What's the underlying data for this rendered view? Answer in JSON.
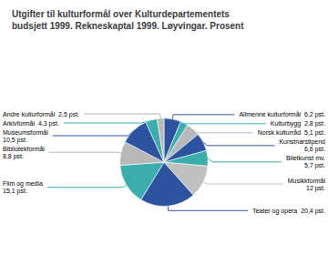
{
  "chart_data": {
    "type": "pie",
    "title": "Utgifter til kulturformål over Kulturdepartementets\nbudsjett 1999. Rekneskaptal 1999. Løyvingar. Prosent",
    "categories": [
      "Allmenne kulturformål  6,2 pst.",
      "Kulturbygg  2,8 pst.",
      "Norsk kulturråd  5,1 pst.",
      "Kunstnarstipend\n6,6 pst.",
      "Biletkunst mv.\n5,7 pst.",
      "Musikkformål\n12 pst.",
      "Teater og opera  20,4 pst.",
      "Film og media\n15,1 pst.",
      "Bibliotekformål\n8,8 pst.",
      "Museumsformål\n10,5 pst.",
      "Arkivformål  4,3 pst.",
      "Andre kulturformål  2,5 pst."
    ],
    "values": [
      6.2,
      2.8,
      5.1,
      6.6,
      5.7,
      12.0,
      20.4,
      15.1,
      8.8,
      10.5,
      4.3,
      2.5
    ],
    "colors": [
      "#2d52a0",
      "#3aadad",
      "#b8b8b8",
      "#2d52a0",
      "#3aadad",
      "#c0c0c0",
      "#2d52a0",
      "#3aadad",
      "#b8b8b8",
      "#2d52a0",
      "#3aadad",
      "#b8b8b8"
    ]
  }
}
